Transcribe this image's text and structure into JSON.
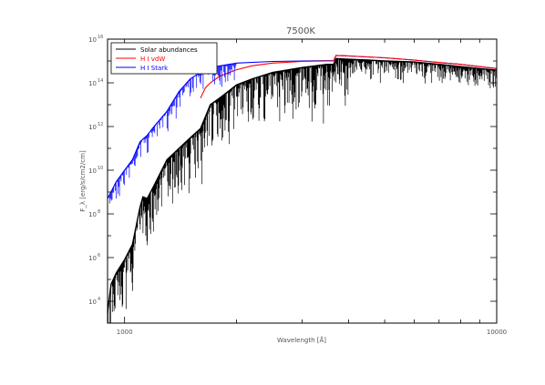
{
  "chart_data": {
    "type": "line",
    "title": "7500K",
    "xlabel": "Wavelength [Å]",
    "ylabel": "F_λ [erg/s/cm2/cm]",
    "xscale": "log",
    "yscale": "log",
    "xlim": [
      900,
      10000
    ],
    "ylim": [
      1000,
      10000000000000000
    ],
    "grid": false,
    "legend_position": "top-left",
    "x_ticks": [
      {
        "value": 1000,
        "label": "1000"
      },
      {
        "value": 10000,
        "label": "10000"
      }
    ],
    "y_ticks": [
      {
        "value": 10000,
        "base": "10",
        "exp": "4"
      },
      {
        "value": 1000000,
        "base": "10",
        "exp": "6"
      },
      {
        "value": 100000000,
        "base": "10",
        "exp": "8"
      },
      {
        "value": 10000000000,
        "base": "10",
        "exp": "10"
      },
      {
        "value": 1000000000000,
        "base": "10",
        "exp": "12"
      },
      {
        "value": 100000000000000,
        "base": "10",
        "exp": "14"
      },
      {
        "value": 10000000000000000,
        "base": "10",
        "exp": "16"
      }
    ],
    "series": [
      {
        "name": "Solar abundances",
        "color": "#000000",
        "x": [
          900,
          920,
          950,
          1000,
          1050,
          1100,
          1120,
          1150,
          1200,
          1300,
          1400,
          1500,
          1600,
          1700,
          1800,
          2000,
          2200,
          2500,
          3000,
          3500,
          3647,
          3700,
          4000,
          4500,
          5000,
          6000,
          7000,
          8000,
          9000,
          10000
        ],
        "y": [
          3000,
          60000,
          200000,
          800000,
          4000000,
          200000000,
          600000000,
          500000000,
          2000000000,
          30000000000,
          100000000000,
          300000000000,
          800000000000,
          10000000000000,
          20000000000000,
          80000000000000,
          150000000000000,
          300000000000000,
          500000000000000,
          700000000000000,
          700000000000000,
          1300000000000000,
          1200000000000000,
          1100000000000000,
          1000000000000000,
          900000000000000,
          700000000000000,
          550000000000000,
          450000000000000,
          380000000000000
        ]
      },
      {
        "name": "H I vdW",
        "color": "#ff0000",
        "x": [
          1600,
          1650,
          1700,
          1800,
          2000,
          2200,
          2500,
          3000,
          3500,
          3647,
          3700,
          4000,
          5000,
          6000,
          7000,
          8000,
          9000,
          10000
        ],
        "y": [
          20000000000000,
          60000000000000,
          100000000000000,
          200000000000000,
          400000000000000,
          600000000000000,
          800000000000000,
          950000000000000,
          1000000000000000,
          1000000000000000,
          1800000000000000,
          1700000000000000,
          1400000000000000,
          1100000000000000,
          850000000000000,
          700000000000000,
          550000000000000,
          450000000000000
        ]
      },
      {
        "name": "H I Stark",
        "color": "#0000ff",
        "x": [
          900,
          950,
          1000,
          1050,
          1100,
          1150,
          1200,
          1300,
          1400,
          1500,
          1600,
          1700,
          2000,
          2500,
          3000,
          3647,
          3700,
          4000,
          5000,
          6000,
          7000,
          8000,
          9000,
          10000
        ],
        "y": [
          500000000,
          3000000000,
          10000000000,
          30000000000,
          200000000000,
          400000000000,
          1000000000000,
          5000000000000,
          40000000000000,
          150000000000000,
          300000000000000,
          500000000000000,
          800000000000000,
          950000000000000,
          1000000000000000,
          1050000000000000,
          1800000000000000,
          1700000000000000,
          1400000000000000,
          1100000000000000,
          850000000000000,
          700000000000000,
          550000000000000,
          450000000000000
        ]
      }
    ]
  }
}
